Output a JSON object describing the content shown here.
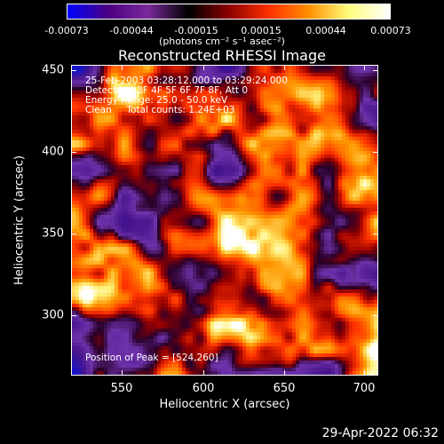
{
  "colorbar": {
    "ticks": [
      "-0.00073",
      "-0.00044",
      "-0.00015",
      "0.00015",
      "0.00044",
      "0.00073"
    ],
    "units": "(photons cm⁻² s⁻¹ asec⁻²)",
    "colors": [
      "#0000ff",
      "#4b0082",
      "#7a2a9a",
      "#000000",
      "#8b0000",
      "#ff3000",
      "#ff9000",
      "#ffff80",
      "#ffffff"
    ]
  },
  "plot": {
    "title": "Reconstructed RHESSI Image",
    "info_line1": "25-Feb-2003 03:28:12.000 to 03:29:24.000",
    "info_line2": "Detectors: 3F 4F 5F 6F 7F 8F, Att 0",
    "info_line3": "Energy Range: 25.0 - 50.0 keV",
    "info_line4": "Clean     Total counts: 1.24E+03",
    "peak": "Position of Peak = [524,260]",
    "x_label": "Heliocentric X (arcsec)",
    "y_label": "Heliocentric Y (arcsec)",
    "x_ticks": [
      "550",
      "600",
      "650",
      "700"
    ],
    "y_ticks": [
      "450",
      "400",
      "350",
      "300"
    ]
  },
  "footer": {
    "timestamp": "29-Apr-2022 06:32"
  }
}
